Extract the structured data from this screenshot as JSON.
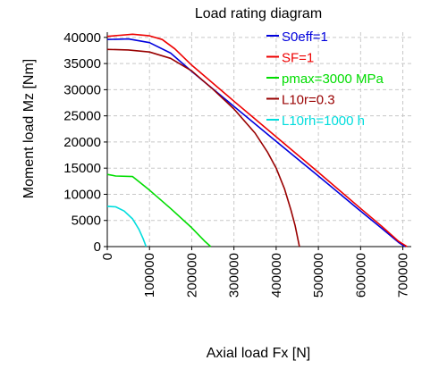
{
  "chart_data": {
    "type": "line",
    "title": "Load rating diagram",
    "xlabel": "Axial load Fx [N]",
    "ylabel": "Moment load Mz [Nm]",
    "xlim": [
      0,
      720000
    ],
    "ylim": [
      0,
      41000
    ],
    "xticks": [
      0,
      100000,
      200000,
      300000,
      400000,
      500000,
      600000,
      700000
    ],
    "yticks": [
      0,
      5000,
      10000,
      15000,
      20000,
      25000,
      30000,
      35000,
      40000
    ],
    "grid": true,
    "legend_placement": "top-right",
    "series": [
      {
        "name": "S0eff=1",
        "color": "#0000dd",
        "x": [
          0,
          50000,
          100000,
          150000,
          200000,
          300000,
          400000,
          500000,
          600000,
          650000,
          690000,
          705000
        ],
        "y": [
          39600,
          39700,
          39000,
          37000,
          33500,
          26800,
          20100,
          13500,
          6800,
          3500,
          800,
          0
        ]
      },
      {
        "name": "SF=1",
        "color": "#ee0000",
        "x": [
          0,
          30000,
          60000,
          100000,
          130000,
          160000,
          200000,
          300000,
          400000,
          500000,
          600000,
          650000,
          690000,
          710000
        ],
        "y": [
          40200,
          40400,
          40600,
          40300,
          39600,
          37800,
          34700,
          27800,
          21000,
          14200,
          7300,
          3900,
          1000,
          0
        ]
      },
      {
        "name": "pmax=3000 MPa",
        "color": "#00dd00",
        "x": [
          0,
          20000,
          60000,
          100000,
          150000,
          200000,
          230000,
          245000
        ],
        "y": [
          13800,
          13500,
          13400,
          10800,
          7300,
          3600,
          1100,
          0
        ]
      },
      {
        "name": "L10r=0.3",
        "color": "#990000",
        "x": [
          0,
          50000,
          100000,
          150000,
          200000,
          250000,
          300000,
          350000,
          380000,
          400000,
          420000,
          435000,
          445000,
          450000,
          455000
        ],
        "y": [
          37700,
          37600,
          37200,
          36000,
          33600,
          30100,
          26300,
          21700,
          18000,
          15000,
          11000,
          7000,
          4000,
          2000,
          0
        ]
      },
      {
        "name": "L10rh=1000 h",
        "color": "#00dddd",
        "x": [
          0,
          20000,
          40000,
          60000,
          75000,
          85000,
          92000
        ],
        "y": [
          7700,
          7600,
          6800,
          5300,
          3300,
          1500,
          0
        ]
      }
    ]
  }
}
